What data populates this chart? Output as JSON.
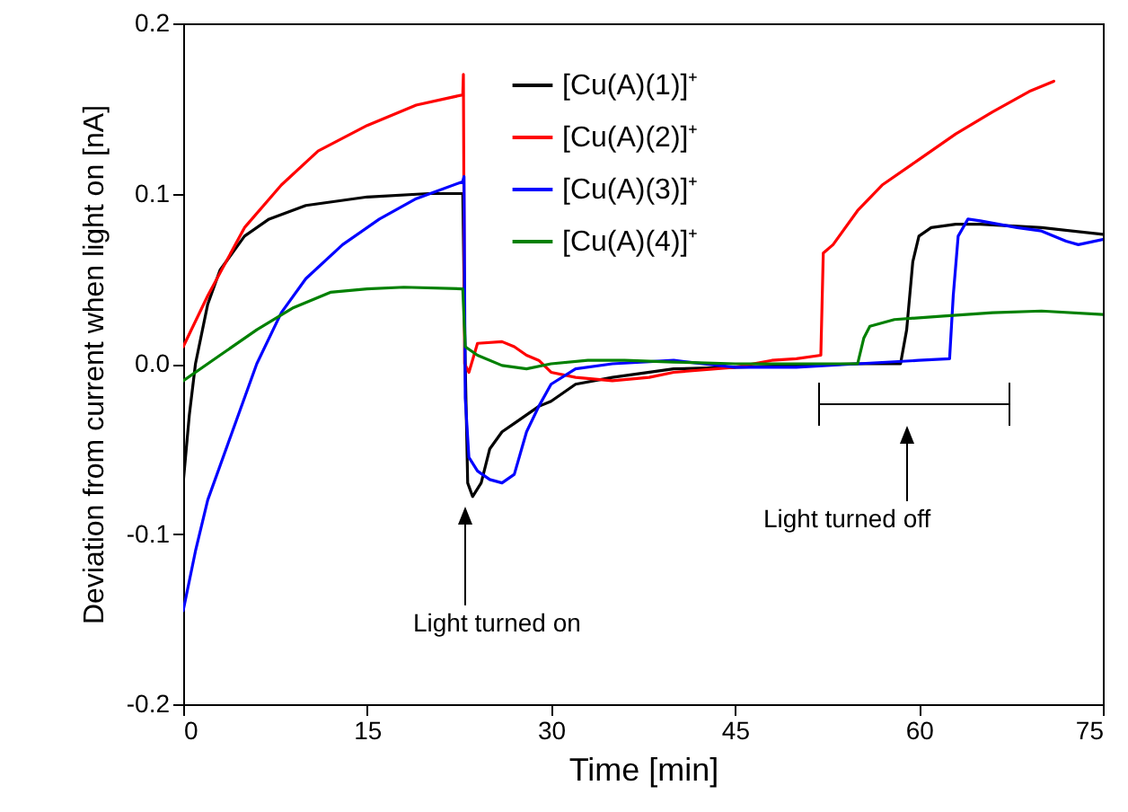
{
  "chart_data": {
    "type": "line",
    "xlabel": "Time [min]",
    "ylabel": "Deviation from current when light on [nA]",
    "xlim": [
      0,
      75
    ],
    "xticks": [
      0,
      15,
      30,
      45,
      60,
      75
    ],
    "ylim": [
      -0.2,
      0.2
    ],
    "yticks": [
      -0.2,
      -0.1,
      {
        "value": 0,
        "label": "0.0"
      },
      0.1,
      0.2
    ],
    "legend": "top right",
    "line_style": "solid",
    "marker": "none",
    "annotations": [
      "Light turned on",
      "Light turned off"
    ],
    "series": [
      {
        "name": "[Cu(A)(1)]⁺",
        "color": "#000000",
        "x": [
          0,
          0.5,
          1,
          2,
          3,
          5,
          7,
          10,
          15,
          20,
          22.8,
          23,
          23.2,
          23.6,
          24.3,
          25,
          26,
          27,
          28,
          29,
          30,
          32,
          35,
          40,
          45,
          50,
          55,
          58.5,
          59,
          59.5,
          60,
          61,
          63,
          65,
          70,
          75
        ],
        "values": [
          -0.07,
          -0.03,
          0,
          0.035,
          0.055,
          0.075,
          0.085,
          0.093,
          0.098,
          0.1,
          0.1,
          0,
          -0.07,
          -0.078,
          -0.07,
          -0.05,
          -0.04,
          -0.035,
          -0.03,
          -0.025,
          -0.022,
          -0.012,
          -0.008,
          -0.003,
          -0.002,
          -0.001,
          0,
          0,
          0.02,
          0.06,
          0.075,
          0.08,
          0.082,
          0.082,
          0.08,
          0.076
        ]
      },
      {
        "name": "[Cu(A)(2)]⁺",
        "color": "#ff0000",
        "x": [
          0,
          2,
          5,
          8,
          11,
          15,
          19,
          22.8,
          22.85,
          22.95,
          23.3,
          24,
          26,
          27,
          28,
          29,
          30,
          32,
          35,
          38,
          40,
          45,
          48,
          50,
          52,
          52.2,
          53,
          55,
          57,
          60,
          63,
          66,
          69,
          71
        ],
        "values": [
          0.01,
          0.04,
          0.08,
          0.105,
          0.125,
          0.14,
          0.152,
          0.158,
          0.17,
          0,
          -0.005,
          0.012,
          0.013,
          0.01,
          0.005,
          0.002,
          -0.005,
          -0.008,
          -0.01,
          -0.008,
          -0.005,
          -0.002,
          0.002,
          0.003,
          0.005,
          0.065,
          0.07,
          0.09,
          0.105,
          0.12,
          0.135,
          0.148,
          0.16,
          0.166
        ]
      },
      {
        "name": "[Cu(A)(3)]⁺",
        "color": "#0000ff",
        "x": [
          0,
          1,
          2,
          4,
          6,
          8,
          10,
          13,
          16,
          19,
          22.8,
          22.9,
          23,
          23.3,
          24,
          25,
          26,
          27,
          28,
          29,
          30,
          32,
          35,
          40,
          45,
          50,
          55,
          60,
          62.5,
          62.8,
          63.2,
          64,
          65,
          68,
          70,
          72,
          73,
          75
        ],
        "values": [
          -0.145,
          -0.11,
          -0.08,
          -0.04,
          0,
          0.03,
          0.05,
          0.07,
          0.085,
          0.097,
          0.107,
          0.11,
          -0.02,
          -0.055,
          -0.063,
          -0.068,
          -0.07,
          -0.065,
          -0.04,
          -0.025,
          -0.012,
          -0.003,
          0,
          0.002,
          -0.002,
          -0.002,
          0,
          0.002,
          0.003,
          0.04,
          0.075,
          0.085,
          0.084,
          0.08,
          0.078,
          0.072,
          0.07,
          0.073
        ]
      },
      {
        "name": "[Cu(A)(4)]⁺",
        "color": "#008000",
        "x": [
          0,
          3,
          6,
          9,
          12,
          15,
          18,
          22.8,
          23,
          24,
          26,
          28,
          30,
          33,
          36,
          40,
          45,
          50,
          55,
          55.5,
          56,
          58,
          62,
          66,
          70,
          75
        ],
        "values": [
          -0.01,
          0.005,
          0.02,
          0.033,
          0.042,
          0.044,
          0.045,
          0.044,
          0.01,
          0.005,
          -0.001,
          -0.003,
          0,
          0.002,
          0.002,
          0.001,
          0,
          0,
          0,
          0.015,
          0.022,
          0.026,
          0.028,
          0.03,
          0.031,
          0.029
        ]
      }
    ]
  }
}
